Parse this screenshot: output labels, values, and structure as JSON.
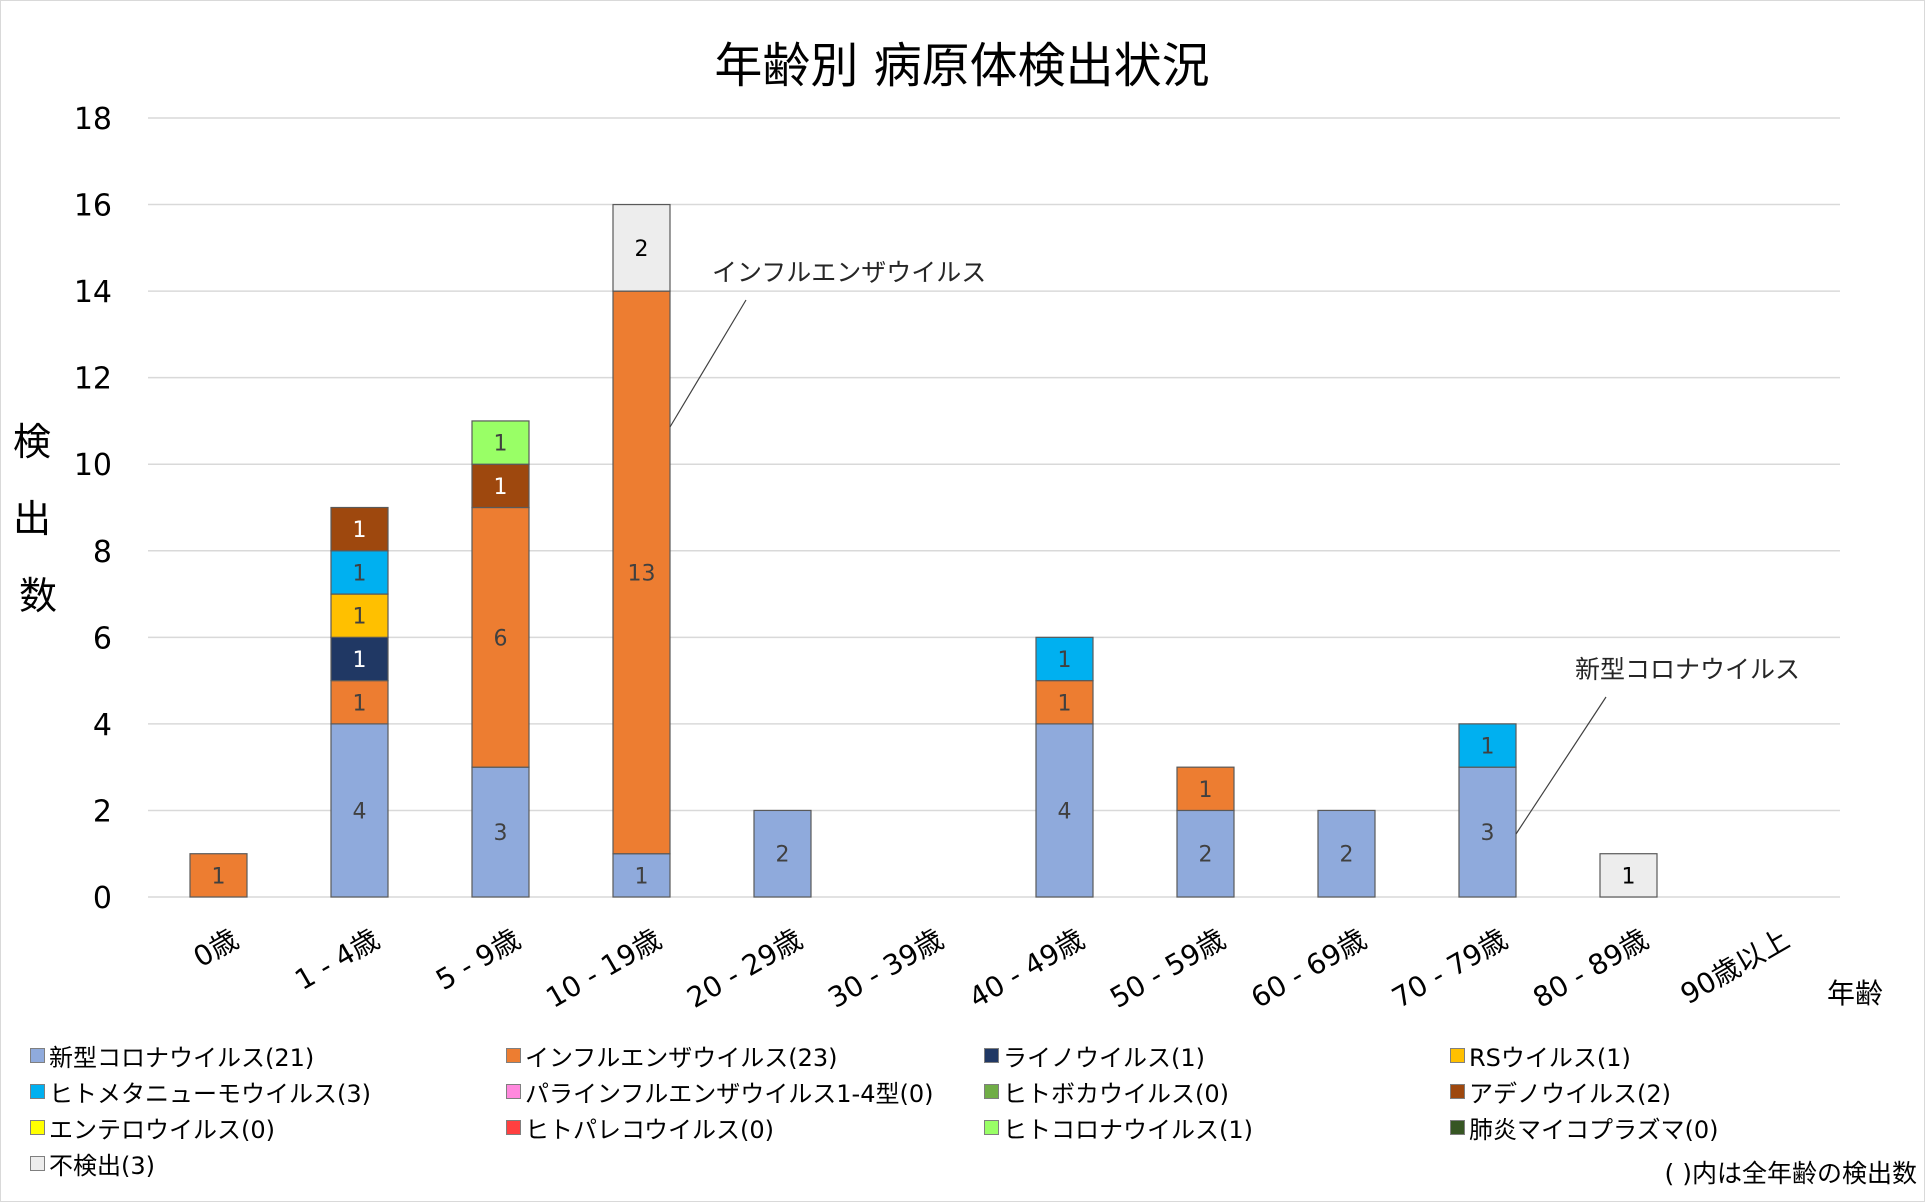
{
  "chart_data": {
    "type": "bar",
    "stacked": true,
    "title": "年齢別 病原体検出状況",
    "xlabel": "年齢",
    "ylabel": "検出数",
    "ylim": [
      0,
      18
    ],
    "yticks": [
      0,
      2,
      4,
      6,
      8,
      10,
      12,
      14,
      16,
      18
    ],
    "grid": true,
    "legend_position": "bottom",
    "categories": [
      "0歳",
      "1 - 4歳",
      "5 - 9歳",
      "10 - 19歳",
      "20 - 29歳",
      "30 - 39歳",
      "40 - 49歳",
      "50 - 59歳",
      "60 - 69歳",
      "70 - 79歳",
      "80 - 89歳",
      "90歳以上"
    ],
    "series": [
      {
        "name": "新型コロナウイルス",
        "legend_label": "新型コロナウイルス(21)",
        "color": "#8faadc",
        "label_color": "#404040",
        "values": [
          0,
          4,
          3,
          1,
          2,
          0,
          4,
          2,
          2,
          3,
          0,
          0
        ]
      },
      {
        "name": "インフルエンザウイルス",
        "legend_label": "インフルエンザウイルス(23)",
        "color": "#ed7d31",
        "label_color": "#404040",
        "values": [
          1,
          1,
          6,
          13,
          0,
          0,
          1,
          1,
          0,
          0,
          0,
          0
        ]
      },
      {
        "name": "ライノウイルス",
        "legend_label": "ライノウイルス(1)",
        "color": "#203864",
        "label_color": "#ffffff",
        "values": [
          0,
          1,
          0,
          0,
          0,
          0,
          0,
          0,
          0,
          0,
          0,
          0
        ]
      },
      {
        "name": "RSウイルス",
        "legend_label": "RSウイルス(1)",
        "color": "#ffc000",
        "label_color": "#404040",
        "values": [
          0,
          1,
          0,
          0,
          0,
          0,
          0,
          0,
          0,
          0,
          0,
          0
        ]
      },
      {
        "name": "ヒトメタニューモウイルス",
        "legend_label": "ヒトメタニューモウイルス(3)",
        "color": "#00b0f0",
        "label_color": "#404040",
        "values": [
          0,
          1,
          0,
          0,
          0,
          0,
          1,
          0,
          0,
          1,
          0,
          0
        ]
      },
      {
        "name": "パラインフルエンザウイルス1-4型",
        "legend_label": "パラインフルエンザウイルス1-4型(0)",
        "color": "#ff88dd",
        "label_color": "#404040",
        "values": [
          0,
          0,
          0,
          0,
          0,
          0,
          0,
          0,
          0,
          0,
          0,
          0
        ]
      },
      {
        "name": "ヒトボカウイルス",
        "legend_label": "ヒトボカウイルス(0)",
        "color": "#70ad47",
        "label_color": "#404040",
        "values": [
          0,
          0,
          0,
          0,
          0,
          0,
          0,
          0,
          0,
          0,
          0,
          0
        ]
      },
      {
        "name": "アデノウイルス",
        "legend_label": "アデノウイルス(2)",
        "color": "#9e480e",
        "label_color": "#ffffff",
        "values": [
          0,
          1,
          1,
          0,
          0,
          0,
          0,
          0,
          0,
          0,
          0,
          0
        ]
      },
      {
        "name": "エンテロウイルス",
        "legend_label": "エンテロウイルス(0)",
        "color": "#ffff00",
        "label_color": "#404040",
        "values": [
          0,
          0,
          0,
          0,
          0,
          0,
          0,
          0,
          0,
          0,
          0,
          0
        ]
      },
      {
        "name": "ヒトパレコウイルス",
        "legend_label": "ヒトパレコウイルス(0)",
        "color": "#ff4040",
        "label_color": "#404040",
        "values": [
          0,
          0,
          0,
          0,
          0,
          0,
          0,
          0,
          0,
          0,
          0,
          0
        ]
      },
      {
        "name": "ヒトコロナウイルス",
        "legend_label": "ヒトコロナウイルス(1)",
        "color": "#99ff66",
        "label_color": "#404040",
        "values": [
          0,
          0,
          1,
          0,
          0,
          0,
          0,
          0,
          0,
          0,
          0,
          0
        ]
      },
      {
        "name": "肺炎マイコプラズマ",
        "legend_label": "肺炎マイコプラズマ(0)",
        "color": "#375623",
        "label_color": "#ffffff",
        "values": [
          0,
          0,
          0,
          0,
          0,
          0,
          0,
          0,
          0,
          0,
          0,
          0
        ]
      },
      {
        "name": "不検出",
        "legend_label": "不検出(3)",
        "color": "#ededed",
        "label_color": "#000000",
        "values": [
          0,
          0,
          0,
          2,
          0,
          0,
          0,
          0,
          0,
          0,
          1,
          0
        ]
      }
    ],
    "annotations": [
      {
        "text": "インフルエンザウイルス",
        "category": "10 - 19歳",
        "series": "インフルエンザウイルス"
      },
      {
        "text": "新型コロナウイルス",
        "category": "70 - 79歳",
        "series": "新型コロナウイルス"
      }
    ],
    "footnote": "( )内は全年齢の検出数"
  }
}
